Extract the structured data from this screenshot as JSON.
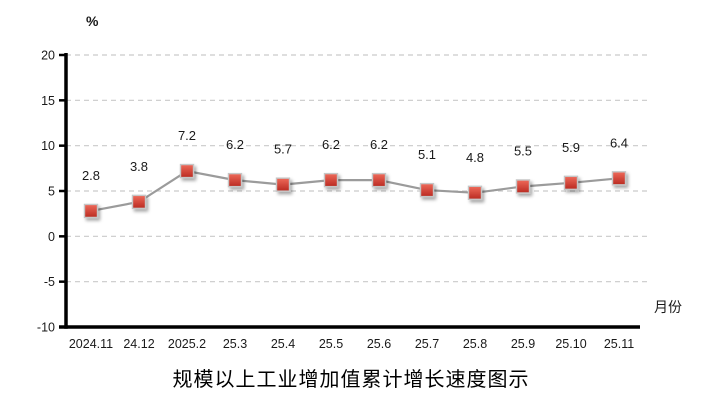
{
  "chart_data": {
    "type": "line",
    "title": "规模以上工业增加值累计增长速度图示",
    "xlabel": "月份",
    "ylabel": "%",
    "categories": [
      "2024.11",
      "24.12",
      "2025.2",
      "25.3",
      "25.4",
      "25.5",
      "25.6",
      "25.7",
      "25.8",
      "25.9",
      "25.10",
      "25.11"
    ],
    "values": [
      2.8,
      3.8,
      7.2,
      6.2,
      5.7,
      6.2,
      6.2,
      5.1,
      4.8,
      5.5,
      5.9,
      6.4
    ],
    "ylim": [
      -10,
      20
    ],
    "ytick_step": 5,
    "grid": true,
    "gridline_style": "dashed",
    "legend": "none",
    "data_labels": true,
    "marker": "square",
    "colors": {
      "marker_fill_dark": "#b92a21",
      "marker_fill_light": "#ef6a5a",
      "marker_border": "#c6c6c6",
      "line": "#9b9b9b",
      "gridline": "#c9c9c9",
      "axis": "#000000",
      "text": "#1a1a1a"
    }
  }
}
